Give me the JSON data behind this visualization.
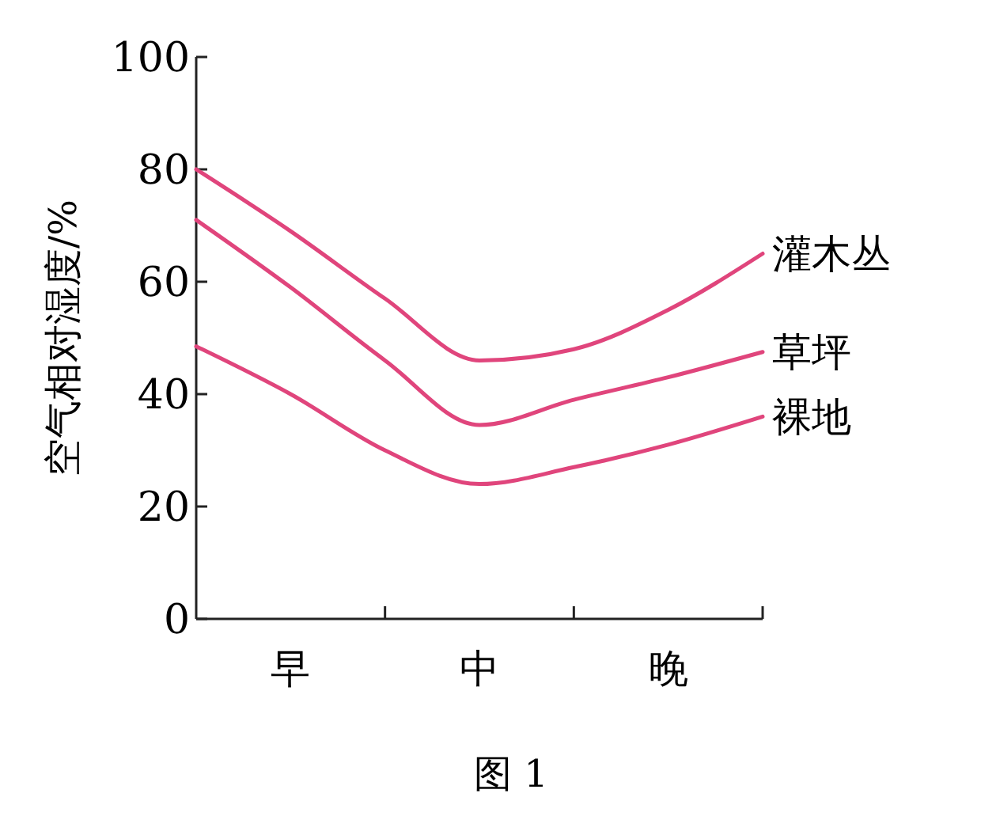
{
  "chart_data": {
    "type": "line",
    "ylabel": "空气相对湿度/%",
    "ylim": [
      0,
      100
    ],
    "categories": [
      null,
      "早",
      null,
      "中",
      null,
      "晚",
      null
    ],
    "yticks": [
      0,
      20,
      40,
      60,
      80,
      100
    ],
    "grid": false,
    "marker": "none",
    "line_style": "solid",
    "series": [
      {
        "name": "灌木丛",
        "color": "#e0457c",
        "values": [
          80,
          69,
          57,
          46,
          48,
          55,
          65
        ]
      },
      {
        "name": "草坪",
        "color": "#e0457c",
        "values": [
          71,
          59,
          46,
          34.5,
          39,
          43,
          47.5
        ]
      },
      {
        "name": "裸地",
        "color": "#e0457c",
        "values": [
          48.5,
          40,
          30,
          24,
          27,
          31,
          36
        ]
      }
    ],
    "annotations": [
      "图 1"
    ]
  }
}
